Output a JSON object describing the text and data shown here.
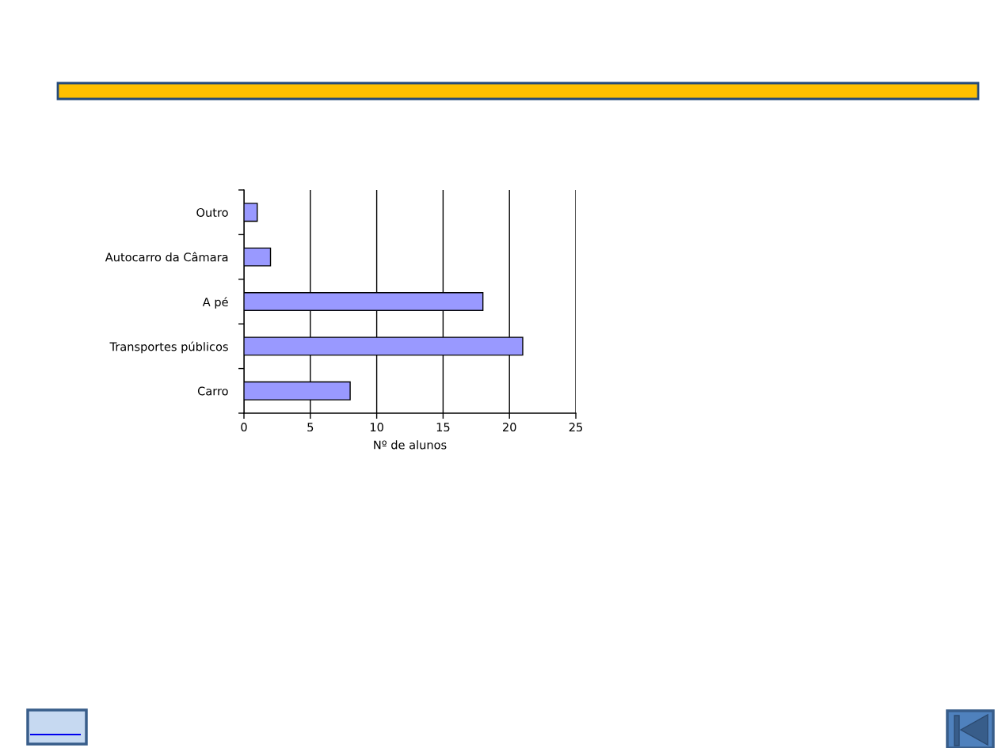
{
  "chart_data": {
    "type": "bar",
    "orientation": "horizontal",
    "categories": [
      "Outro",
      "Autocarro da Câmara",
      "A pé",
      "Transportes públicos",
      "Carro"
    ],
    "values": [
      1,
      2,
      18,
      21,
      8
    ],
    "color": "#9999ff",
    "xlabel": "Nº de alunos",
    "xlim": [
      0,
      25
    ],
    "xticks": [
      0,
      5,
      10,
      15,
      20,
      25
    ],
    "grid": "x"
  }
}
